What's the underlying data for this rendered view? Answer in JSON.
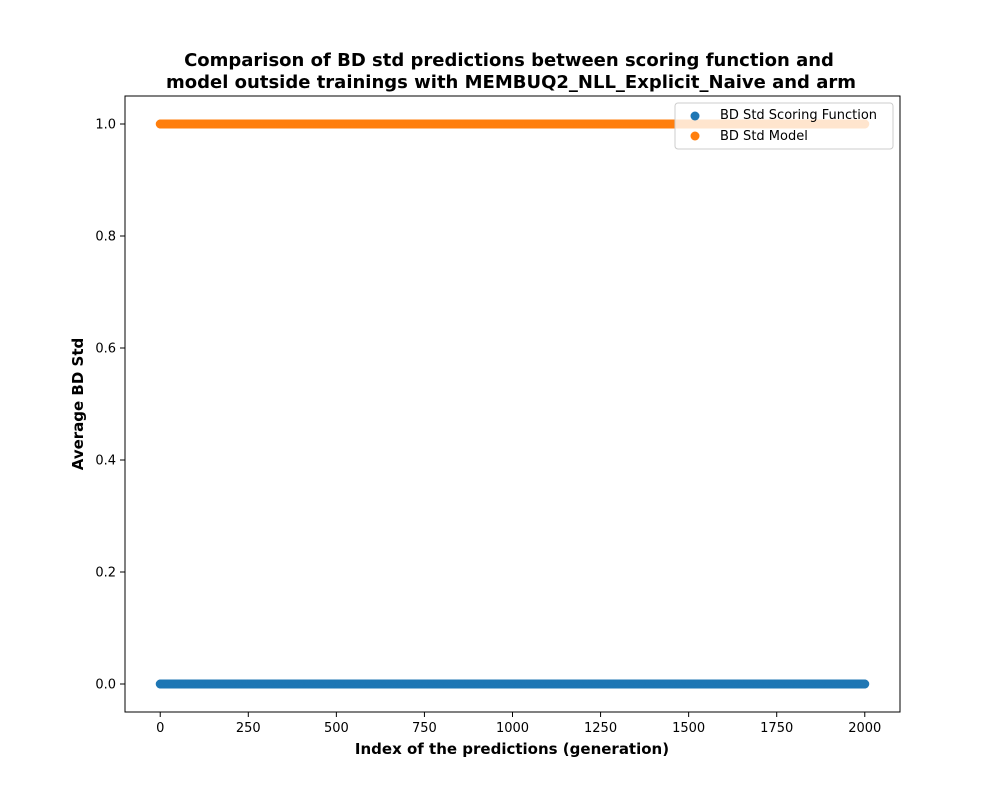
{
  "chart_data": {
    "type": "scatter",
    "title_lines": [
      "Comparison of BD std predictions between scoring function and",
      "model outside trainings with MEMBUQ2_NLL_Explicit_Naive and arm"
    ],
    "xlabel": "Index of the predictions (generation)",
    "ylabel": "Average BD Std",
    "xlim": [
      -100,
      2100
    ],
    "ylim": [
      -0.05,
      1.05
    ],
    "xticks": [
      0,
      250,
      500,
      750,
      1000,
      1250,
      1500,
      1750,
      2000
    ],
    "xtick_labels": [
      "0",
      "250",
      "500",
      "750",
      "1000",
      "1250",
      "1500",
      "1750",
      "2000"
    ],
    "yticks": [
      0.0,
      0.2,
      0.4,
      0.6,
      0.8,
      1.0
    ],
    "ytick_labels": [
      "0.0",
      "0.2",
      "0.4",
      "0.6",
      "0.8",
      "1.0"
    ],
    "legend_position": "top-right",
    "x_range": [
      0,
      2000
    ],
    "point_count": 2001,
    "series": [
      {
        "name": "BD Std Scoring Function",
        "color": "#1f77b4",
        "constant_value": 0.0
      },
      {
        "name": "BD Std Model",
        "color": "#ff7f0e",
        "constant_value": 1.0
      }
    ]
  }
}
